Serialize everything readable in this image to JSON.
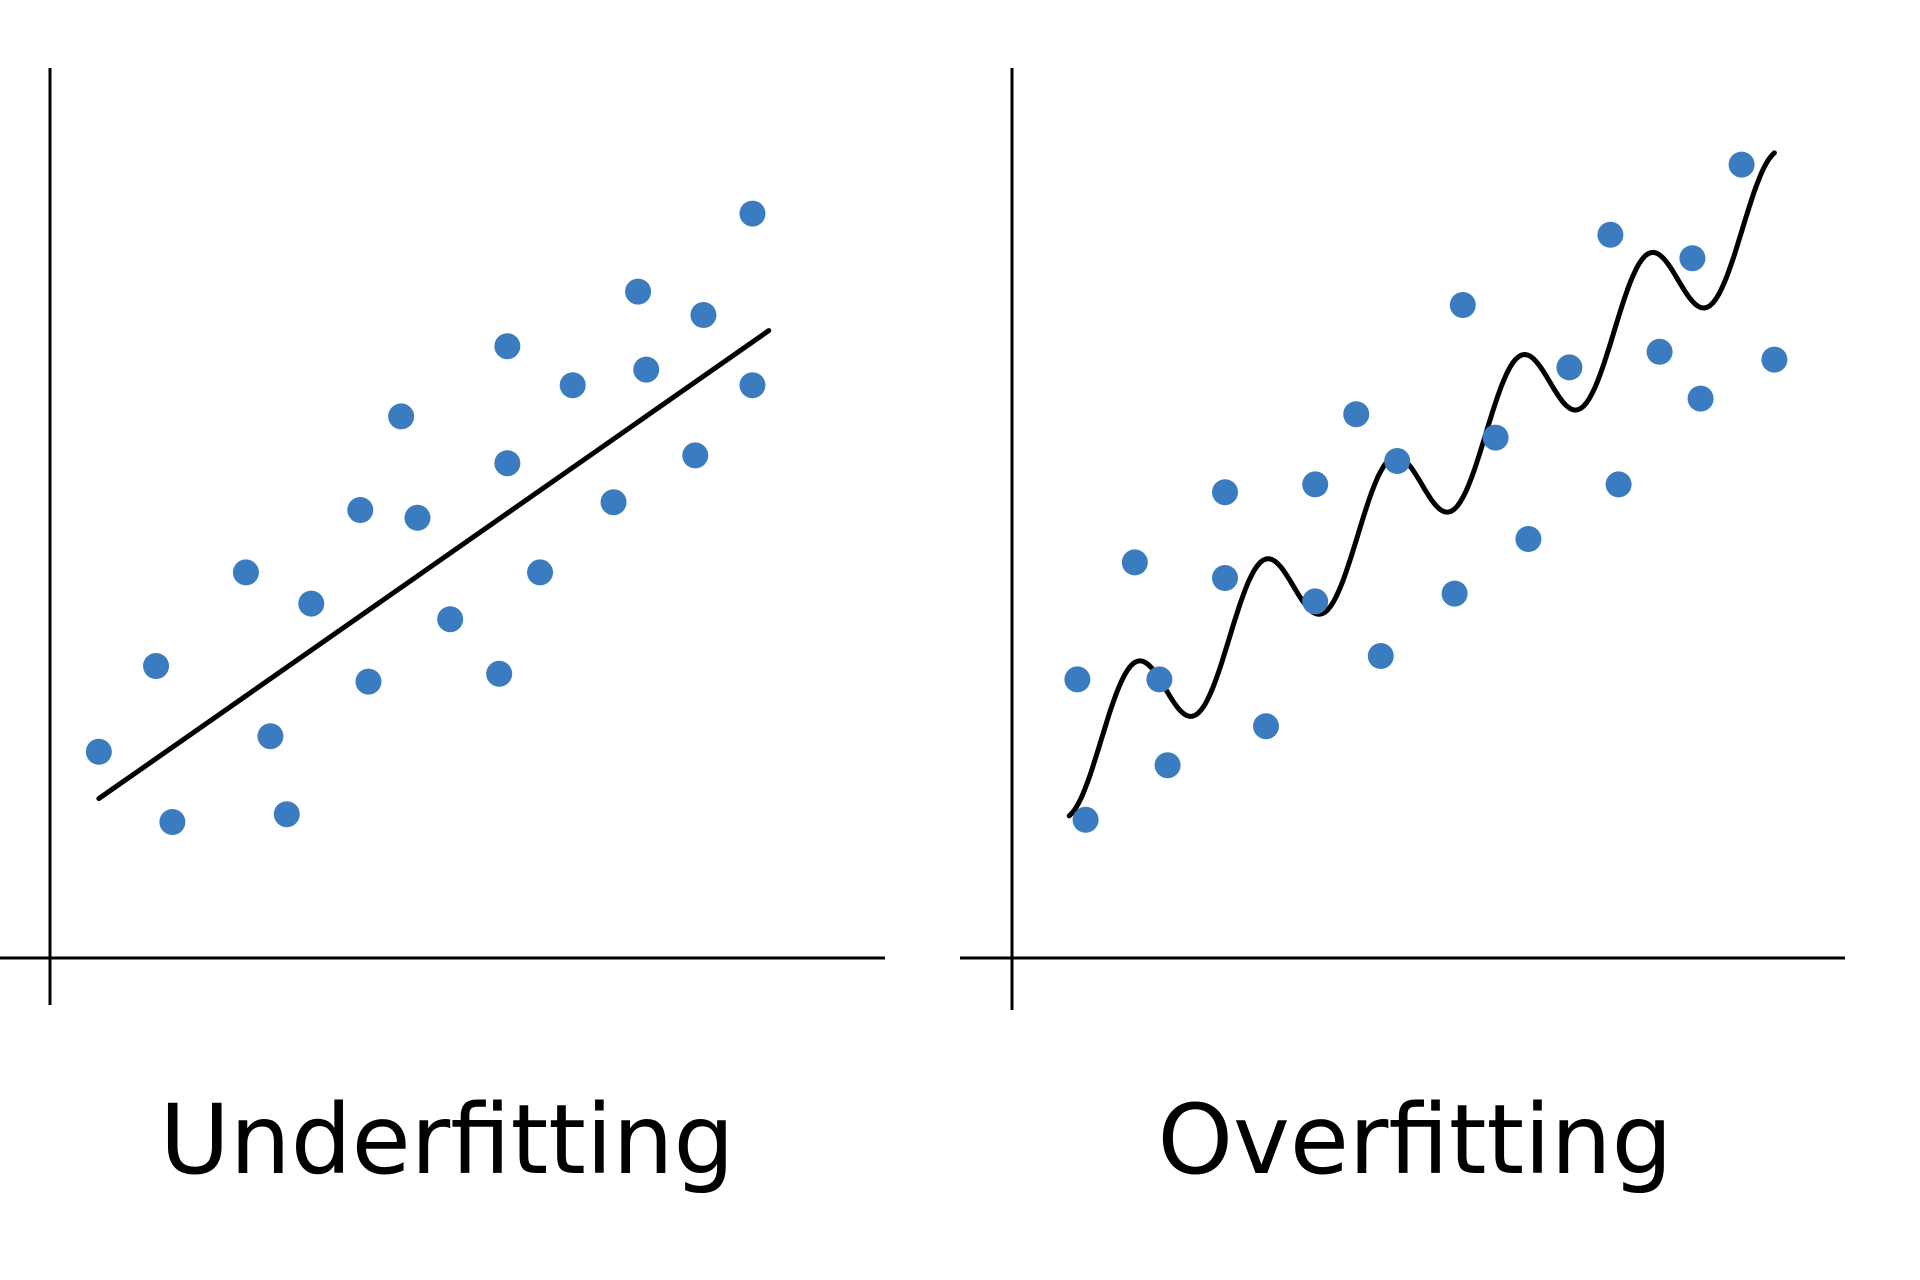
{
  "colors": {
    "points": "#3a7cbf",
    "lines": "#000000",
    "background": "#ffffff"
  },
  "chart_data": [
    {
      "type": "scatter",
      "title": "Underfitting",
      "xlabel": "",
      "ylabel": "",
      "xlim": [
        0,
        10
      ],
      "ylim": [
        0,
        10
      ],
      "grid": false,
      "points": [
        {
          "x": 0.5,
          "y": 1.9
        },
        {
          "x": 1.2,
          "y": 3.0
        },
        {
          "x": 1.4,
          "y": 1.0
        },
        {
          "x": 2.3,
          "y": 4.2
        },
        {
          "x": 2.6,
          "y": 2.1
        },
        {
          "x": 2.8,
          "y": 1.1
        },
        {
          "x": 3.1,
          "y": 3.8
        },
        {
          "x": 3.7,
          "y": 5.0
        },
        {
          "x": 3.8,
          "y": 2.8
        },
        {
          "x": 4.2,
          "y": 6.2
        },
        {
          "x": 4.4,
          "y": 4.9
        },
        {
          "x": 4.8,
          "y": 3.6
        },
        {
          "x": 5.4,
          "y": 2.9
        },
        {
          "x": 5.5,
          "y": 5.6
        },
        {
          "x": 5.5,
          "y": 7.1
        },
        {
          "x": 5.9,
          "y": 4.2
        },
        {
          "x": 6.3,
          "y": 6.6
        },
        {
          "x": 6.8,
          "y": 5.1
        },
        {
          "x": 7.1,
          "y": 7.8
        },
        {
          "x": 7.2,
          "y": 6.8
        },
        {
          "x": 7.8,
          "y": 5.7
        },
        {
          "x": 7.9,
          "y": 7.5
        },
        {
          "x": 8.5,
          "y": 6.6
        },
        {
          "x": 8.5,
          "y": 8.8
        }
      ],
      "fit": {
        "kind": "linear",
        "x_range": [
          0.5,
          8.7
        ],
        "y_start": 1.3,
        "y_end": 7.3
      }
    },
    {
      "type": "scatter",
      "title": "Overfitting",
      "xlabel": "",
      "ylabel": "",
      "xlim": [
        0,
        10
      ],
      "ylim": [
        0,
        10
      ],
      "grid": false,
      "points": [
        {
          "x": 0.7,
          "y": 2.7
        },
        {
          "x": 0.8,
          "y": 0.9
        },
        {
          "x": 1.4,
          "y": 4.2
        },
        {
          "x": 1.7,
          "y": 2.7
        },
        {
          "x": 1.8,
          "y": 1.6
        },
        {
          "x": 2.5,
          "y": 5.1
        },
        {
          "x": 2.5,
          "y": 4.0
        },
        {
          "x": 3.0,
          "y": 2.1
        },
        {
          "x": 3.6,
          "y": 5.2
        },
        {
          "x": 3.6,
          "y": 3.7
        },
        {
          "x": 4.1,
          "y": 6.1
        },
        {
          "x": 4.4,
          "y": 3.0
        },
        {
          "x": 4.6,
          "y": 5.5
        },
        {
          "x": 5.3,
          "y": 3.8
        },
        {
          "x": 5.4,
          "y": 7.5
        },
        {
          "x": 5.8,
          "y": 5.8
        },
        {
          "x": 6.2,
          "y": 4.5
        },
        {
          "x": 6.7,
          "y": 6.7
        },
        {
          "x": 7.2,
          "y": 8.4
        },
        {
          "x": 7.3,
          "y": 5.2
        },
        {
          "x": 7.8,
          "y": 6.9
        },
        {
          "x": 8.2,
          "y": 8.1
        },
        {
          "x": 8.3,
          "y": 6.3
        },
        {
          "x": 8.8,
          "y": 9.3
        },
        {
          "x": 9.2,
          "y": 6.8
        }
      ],
      "fit": {
        "kind": "wiggly",
        "x_range": [
          0.6,
          9.2
        ],
        "y_start": 1.6,
        "y_end": 8.8,
        "amplitude": 0.65,
        "cycles": 5.5
      }
    }
  ]
}
